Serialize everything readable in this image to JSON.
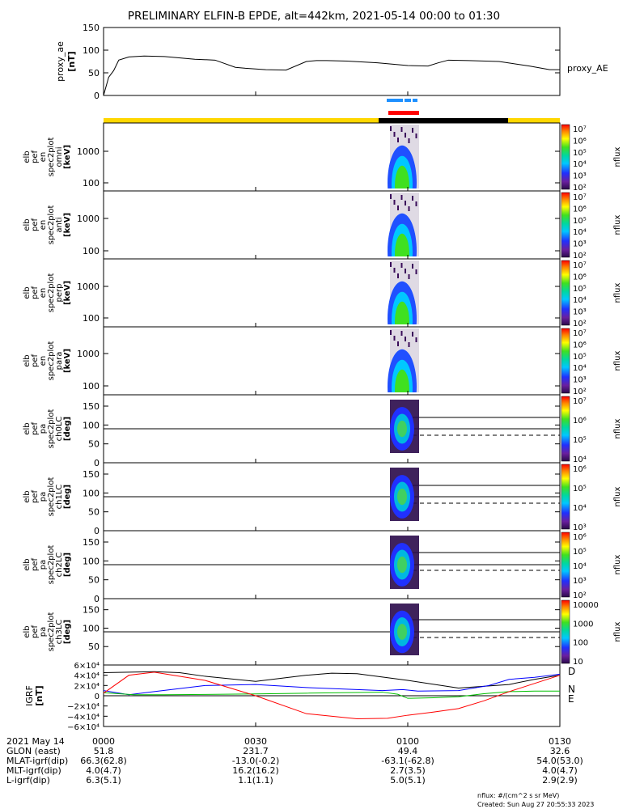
{
  "title": "PRELIMINARY ELFIN-B EPDE, alt=442km, 2021-05-14 00:00 to 01:30",
  "chart_data": [
    {
      "type": "line",
      "ylabel": "proxy_ae [nT]",
      "ylabel_lines": [
        "proxy_ae",
        "[nT]"
      ],
      "ylim": [
        0,
        150
      ],
      "yticks": [
        "150",
        "100",
        "50",
        "0"
      ],
      "series": [
        {
          "name": "proxy_AE",
          "x_minutes": [
            0,
            1,
            2,
            3,
            5,
            8,
            12,
            18,
            22,
            26,
            28,
            32,
            36,
            40,
            42,
            44,
            48,
            54,
            60,
            64,
            66,
            68,
            72,
            78,
            84,
            88,
            90
          ],
          "values": [
            0,
            40,
            55,
            78,
            85,
            87,
            86,
            80,
            78,
            62,
            60,
            57,
            56,
            75,
            77,
            77,
            76,
            72,
            66,
            65,
            72,
            78,
            77,
            75,
            65,
            57,
            57
          ]
        }
      ]
    },
    {
      "type": "heatmap",
      "ylabel_lines": [
        "elb",
        "pef",
        "en",
        "spec2plot",
        "omni",
        "[keV]"
      ],
      "yscale": "log",
      "yticks": [
        "1000",
        "100"
      ],
      "colorbar": {
        "label": "nflux",
        "ticks": [
          "10⁷",
          "10⁶",
          "10⁵",
          "10⁴",
          "10³",
          "10²"
        ]
      }
    },
    {
      "type": "heatmap",
      "ylabel_lines": [
        "elb",
        "pef",
        "en",
        "spec2plot",
        "anti",
        "[keV]"
      ],
      "yscale": "log",
      "yticks": [
        "1000",
        "100"
      ],
      "colorbar": {
        "label": "nflux",
        "ticks": [
          "10⁷",
          "10⁶",
          "10⁵",
          "10⁴",
          "10³",
          "10²"
        ]
      }
    },
    {
      "type": "heatmap",
      "ylabel_lines": [
        "elb",
        "pef",
        "en",
        "spec2plot",
        "perp",
        "[keV]"
      ],
      "yscale": "log",
      "yticks": [
        "1000",
        "100"
      ],
      "colorbar": {
        "label": "nflux",
        "ticks": [
          "10⁷",
          "10⁶",
          "10⁵",
          "10⁴",
          "10³",
          "10²"
        ]
      }
    },
    {
      "type": "heatmap",
      "ylabel_lines": [
        "elb",
        "pef",
        "en",
        "spec2plot",
        "para",
        "[keV]"
      ],
      "yscale": "log",
      "yticks": [
        "1000",
        "100"
      ],
      "colorbar": {
        "label": "nflux",
        "ticks": [
          "10⁷",
          "10⁶",
          "10⁵",
          "10⁴",
          "10³",
          "10²"
        ]
      }
    },
    {
      "type": "heatmap",
      "ylabel_lines": [
        "elb",
        "pef",
        "pa",
        "spec2plot",
        "ch0LC",
        "[deg]"
      ],
      "ylim": [
        0,
        180
      ],
      "yticks": [
        "150",
        "100",
        "50",
        "0"
      ],
      "colorbar": {
        "label": "nflux",
        "ticks": [
          "10⁷",
          "10⁶",
          "10⁵",
          "10⁴"
        ]
      }
    },
    {
      "type": "heatmap",
      "ylabel_lines": [
        "elb",
        "pef",
        "pa",
        "spec2plot",
        "ch1LC",
        "[deg]"
      ],
      "ylim": [
        0,
        180
      ],
      "yticks": [
        "150",
        "100",
        "50",
        "0"
      ],
      "colorbar": {
        "label": "nflux",
        "ticks": [
          "10⁶",
          "10⁵",
          "10⁴",
          "10³"
        ]
      }
    },
    {
      "type": "heatmap",
      "ylabel_lines": [
        "elb",
        "pef",
        "pa",
        "spec2plot",
        "ch2LC",
        "[deg]"
      ],
      "ylim": [
        0,
        180
      ],
      "yticks": [
        "150",
        "100",
        "50",
        "0"
      ],
      "colorbar": {
        "label": "nflux",
        "ticks": [
          "10⁶",
          "10⁵",
          "10⁴",
          "10³",
          "10²"
        ]
      }
    },
    {
      "type": "heatmap",
      "ylabel_lines": [
        "elb",
        "pef",
        "pa",
        "spec2plot",
        "ch3LC",
        "[deg]"
      ],
      "ylim": [
        0,
        180
      ],
      "yticks": [
        "150",
        "100",
        "50"
      ],
      "colorbar": {
        "label": "nflux",
        "ticks": [
          "10000",
          "1000",
          "100",
          "10"
        ]
      }
    },
    {
      "type": "line",
      "ylabel": "IGRF [nT]",
      "ylabel_lines": [
        "IGRF",
        "[nT]"
      ],
      "ylim": [
        -60000,
        60000
      ],
      "yticks": [
        "6×10⁴",
        "4×10⁴",
        "2×10⁴",
        "0",
        "−2×10⁴",
        "−4×10⁴",
        "−6×10⁴"
      ],
      "series": [
        {
          "name": "D",
          "color": "#000000",
          "x_minutes": [
            0,
            5,
            10,
            15,
            20,
            30,
            40,
            45,
            50,
            60,
            70,
            80,
            85,
            90
          ],
          "values": [
            45000,
            46000,
            47000,
            45000,
            38000,
            28000,
            40000,
            44000,
            43000,
            30000,
            15000,
            22000,
            32000,
            40000
          ]
        },
        {
          "name": "N",
          "color": "#0000ff",
          "x_minutes": [
            0,
            5,
            10,
            20,
            30,
            40,
            55,
            59,
            62,
            70,
            76,
            80,
            85,
            90
          ],
          "values": [
            10000,
            2000,
            8000,
            20000,
            22000,
            16000,
            10000,
            12000,
            9000,
            10000,
            20000,
            32000,
            36000,
            42000
          ]
        },
        {
          "name": "E",
          "color": "#00c000",
          "x_minutes": [
            0,
            3,
            6,
            9,
            12,
            20,
            30,
            40,
            55,
            58,
            60,
            65,
            70,
            75,
            80,
            85,
            90
          ],
          "values": [
            6000,
            4000,
            2000,
            2000,
            2000,
            2500,
            3500,
            5000,
            7000,
            3000,
            -5000,
            -4000,
            -2000,
            4000,
            8000,
            9000,
            9000
          ]
        },
        {
          "name": "",
          "color": "#ff0000",
          "x_minutes": [
            0,
            5,
            10,
            20,
            30,
            40,
            50,
            56,
            60,
            65,
            70,
            75,
            80,
            85,
            90
          ],
          "values": [
            5000,
            40000,
            46000,
            30000,
            0,
            -35000,
            -45000,
            -44000,
            -38000,
            -32000,
            -25000,
            -10000,
            8000,
            24000,
            40000
          ]
        }
      ]
    }
  ],
  "x_axis": {
    "ticks": [
      "0000",
      "0030",
      "0100",
      "0130"
    ],
    "tick_minutes": [
      0,
      30,
      60,
      90
    ],
    "rows": [
      {
        "label": "2021 May 14",
        "values": [
          "0000",
          "0030",
          "0100",
          "0130"
        ]
      },
      {
        "label": "GLON (east)",
        "values": [
          "51.8",
          "231.7",
          "49.4",
          "32.6"
        ]
      },
      {
        "label": "MLAT-igrf(dip)",
        "values": [
          "66.3(62.8)",
          "-13.0(-0.2)",
          "-63.1(-62.8)",
          "54.0(53.0)"
        ]
      },
      {
        "label": "MLT-igrf(dip)",
        "values": [
          "4.0(4.7)",
          "16.2(16.2)",
          "2.7(3.5)",
          "4.0(4.7)"
        ]
      },
      {
        "label": "L-igrf(dip)",
        "values": [
          "6.3(5.1)",
          "1.1(1.1)",
          "5.0(5.1)",
          "2.9(2.9)"
        ]
      }
    ]
  },
  "legend_right": {
    "proxy_label": "proxy_AE",
    "igrf_labels": [
      "D",
      "N",
      "E"
    ]
  },
  "footer": {
    "units": "nflux: #/(cm^2 s sr MeV)",
    "created": "Created: Sun Aug 27 20:55:33 2023"
  },
  "colors": {
    "sunlit_bar": "#ffd700",
    "eclipse_bar": "#000000",
    "science_bar_blue": "#1e90ff",
    "science_bar_red": "#ff0000"
  }
}
